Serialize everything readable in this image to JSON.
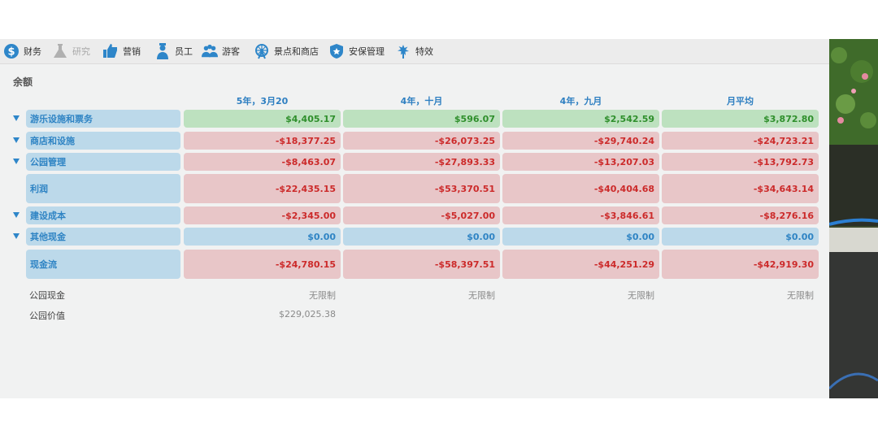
{
  "tabs": [
    {
      "label": "财务",
      "icon": "dollar-icon",
      "disabled": false
    },
    {
      "label": "研究",
      "icon": "flask-icon",
      "disabled": true
    },
    {
      "label": "营销",
      "icon": "thumbs-up-icon",
      "disabled": false
    },
    {
      "label": "员工",
      "icon": "staff-icon",
      "disabled": false
    },
    {
      "label": "游客",
      "icon": "guests-icon",
      "disabled": false
    },
    {
      "label": "景点和商店",
      "icon": "ferris-wheel-icon",
      "disabled": false
    },
    {
      "label": "安保管理",
      "icon": "shield-icon",
      "disabled": false
    },
    {
      "label": "特效",
      "icon": "fireworks-icon",
      "disabled": false
    }
  ],
  "section_title": "余额",
  "columns": [
    "5年，3月20",
    "4年，十月",
    "4年，九月",
    "月平均"
  ],
  "rows": [
    {
      "label": "游乐设施和票务",
      "expandable": true,
      "kind": "pos",
      "values": [
        "$4,405.17",
        "$596.07",
        "$2,542.59",
        "$3,872.80"
      ]
    },
    {
      "label": "商店和设施",
      "expandable": true,
      "kind": "neg",
      "values": [
        "-$18,377.25",
        "-$26,073.25",
        "-$29,740.24",
        "-$24,723.21"
      ]
    },
    {
      "label": "公园管理",
      "expandable": true,
      "kind": "neg",
      "values": [
        "-$8,463.07",
        "-$27,893.33",
        "-$13,207.03",
        "-$13,792.73"
      ]
    },
    {
      "label": "利润",
      "expandable": false,
      "kind": "neg",
      "values": [
        "-$22,435.15",
        "-$53,370.51",
        "-$40,404.68",
        "-$34,643.14"
      ]
    },
    {
      "label": "建设成本",
      "expandable": true,
      "kind": "neg",
      "values": [
        "-$2,345.00",
        "-$5,027.00",
        "-$3,846.61",
        "-$8,276.16"
      ]
    },
    {
      "label": "其他现金",
      "expandable": true,
      "kind": "zero",
      "values": [
        "$0.00",
        "$0.00",
        "$0.00",
        "$0.00"
      ]
    },
    {
      "label": "现金流",
      "expandable": false,
      "kind": "neg",
      "values": [
        "-$24,780.15",
        "-$58,397.51",
        "-$44,251.29",
        "-$42,919.30"
      ]
    }
  ],
  "park_cash": {
    "label": "公园现金",
    "values": [
      "无限制",
      "无限制",
      "无限制",
      "无限制"
    ]
  },
  "park_value": {
    "label": "公园价值",
    "value": "$229,025.38"
  },
  "colors": {
    "accent": "#2e86c9",
    "positive": "#2f8f2c",
    "negative": "#cc2a2a"
  }
}
